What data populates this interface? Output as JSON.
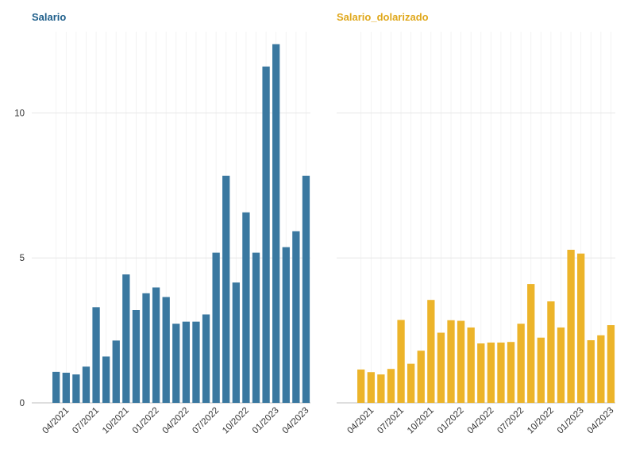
{
  "chart_data": [
    {
      "type": "bar",
      "title": "Salario",
      "color": "#3a78a0",
      "title_color": "#1f5f8b",
      "xlabel": "",
      "ylabel": "",
      "ylim": [
        0,
        12.8
      ],
      "yticks": [
        0,
        5,
        10
      ],
      "grid": true,
      "xtick_labels": [
        "04/2021",
        "07/2021",
        "10/2021",
        "01/2022",
        "04/2022",
        "07/2022",
        "10/2022",
        "01/2023",
        "04/2023"
      ],
      "values": [
        1.07,
        1.04,
        0.98,
        1.25,
        3.3,
        1.6,
        2.15,
        4.43,
        3.2,
        3.78,
        3.98,
        3.65,
        2.73,
        2.8,
        2.8,
        3.05,
        5.18,
        7.83,
        4.15,
        6.57,
        5.18,
        11.6,
        12.37,
        5.37,
        5.92,
        7.83
      ]
    },
    {
      "type": "bar",
      "title": "Salario_dolarizado",
      "color": "#ecb42a",
      "title_color": "#e0a81c",
      "xlabel": "",
      "ylabel": "",
      "ylim": [
        0,
        12.8
      ],
      "yticks": [
        0,
        5,
        10
      ],
      "grid": true,
      "xtick_labels": [
        "04/2021",
        "07/2021",
        "10/2021",
        "01/2022",
        "04/2022",
        "07/2022",
        "10/2022",
        "01/2023",
        "04/2023"
      ],
      "values": [
        1.15,
        1.06,
        0.98,
        1.17,
        2.86,
        1.35,
        1.8,
        3.55,
        2.42,
        2.85,
        2.83,
        2.6,
        2.05,
        2.08,
        2.08,
        2.1,
        2.73,
        4.1,
        2.25,
        3.5,
        2.6,
        5.28,
        5.15,
        2.16,
        2.33,
        2.68
      ]
    }
  ]
}
